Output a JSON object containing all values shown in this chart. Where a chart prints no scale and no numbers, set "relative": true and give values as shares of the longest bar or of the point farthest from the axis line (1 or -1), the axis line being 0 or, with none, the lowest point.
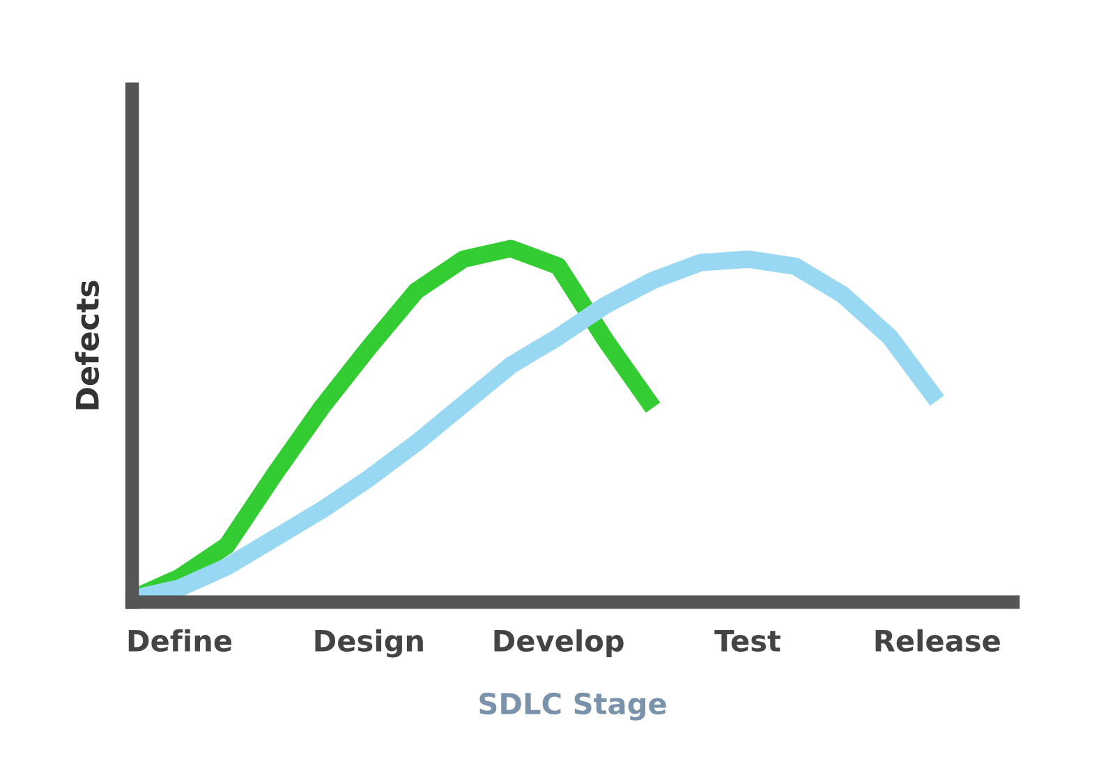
{
  "chart_data": {
    "type": "line",
    "relative": true,
    "xlabel": "SDLC Stage",
    "ylabel": "Defects",
    "categories": [
      null,
      "Define",
      null,
      null,
      null,
      "Design",
      null,
      null,
      null,
      "Develop",
      null,
      null,
      null,
      "Test",
      null,
      null,
      null,
      "Release",
      null
    ],
    "series": [
      {
        "color": "#33cc33",
        "values": [
          0.01,
          0.07,
          0.16,
          0.36,
          0.55,
          0.72,
          0.88,
          0.97,
          1.0,
          0.95,
          0.74,
          0.55,
          null,
          null,
          null,
          null,
          null,
          null,
          null
        ]
      },
      {
        "color": "#99d8f2",
        "values": [
          0.01,
          0.04,
          0.1,
          0.18,
          0.26,
          0.35,
          0.45,
          0.56,
          0.67,
          0.75,
          0.84,
          0.91,
          0.96,
          0.97,
          0.95,
          0.87,
          0.75,
          0.57,
          null
        ]
      }
    ],
    "grid": false,
    "legend": false
  }
}
